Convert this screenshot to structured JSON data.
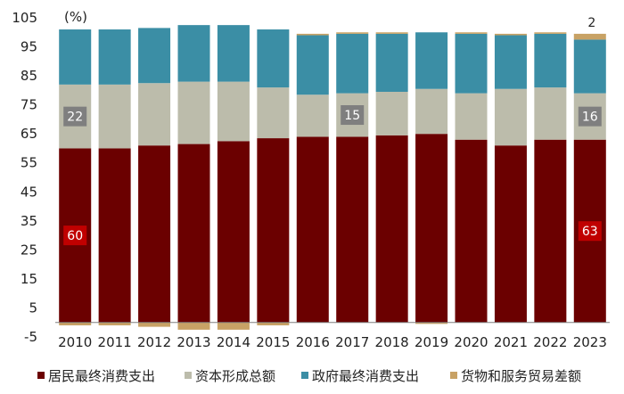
{
  "chart_data": {
    "type": "bar",
    "stacked": true,
    "unit": "(%)",
    "categories": [
      "2010",
      "2011",
      "2012",
      "2013",
      "2014",
      "2015",
      "2016",
      "2017",
      "2018",
      "2019",
      "2020",
      "2021",
      "2022",
      "2023"
    ],
    "ylim": [
      -5,
      105
    ],
    "yticks": [
      -5,
      5,
      15,
      25,
      35,
      45,
      55,
      65,
      75,
      85,
      95,
      105
    ],
    "grid": false,
    "legend": "bottom",
    "series": [
      {
        "name": "居民最终消费支出",
        "color": "#6b0000",
        "values": [
          60,
          60,
          61,
          61.5,
          62.5,
          63.5,
          64,
          64,
          64.5,
          65,
          63,
          61,
          63,
          63
        ]
      },
      {
        "name": "资本形成总额",
        "color": "#bcbcab",
        "values": [
          22,
          22,
          21.5,
          21.5,
          20.5,
          17.5,
          14.5,
          15,
          15,
          15.5,
          16,
          19.5,
          18,
          16
        ]
      },
      {
        "name": "政府最终消费支出",
        "color": "#3b8ea5",
        "values": [
          19,
          19,
          19,
          19.5,
          19.5,
          20,
          20.5,
          20.5,
          20,
          19.5,
          20.5,
          18.5,
          18.5,
          18.5
        ]
      },
      {
        "name": "货物和服务贸易差额",
        "color": "#c8a265",
        "values": [
          -1,
          -1,
          -1.5,
          -2.5,
          -2.5,
          -1,
          0.5,
          0.5,
          0.5,
          -0.5,
          0.5,
          0.5,
          0.5,
          2
        ]
      }
    ],
    "annotations": [
      {
        "category": "2010",
        "series": "居民最终消费支出",
        "text": "60"
      },
      {
        "category": "2010",
        "series": "资本形成总额",
        "text": "22"
      },
      {
        "category": "2017",
        "series": "资本形成总额",
        "text": "15"
      },
      {
        "category": "2023",
        "series": "居民最终消费支出",
        "text": "63"
      },
      {
        "category": "2023",
        "series": "资本形成总额",
        "text": "16"
      },
      {
        "category": "2023",
        "series": "货物和服务贸易差额",
        "text": "2"
      }
    ]
  }
}
